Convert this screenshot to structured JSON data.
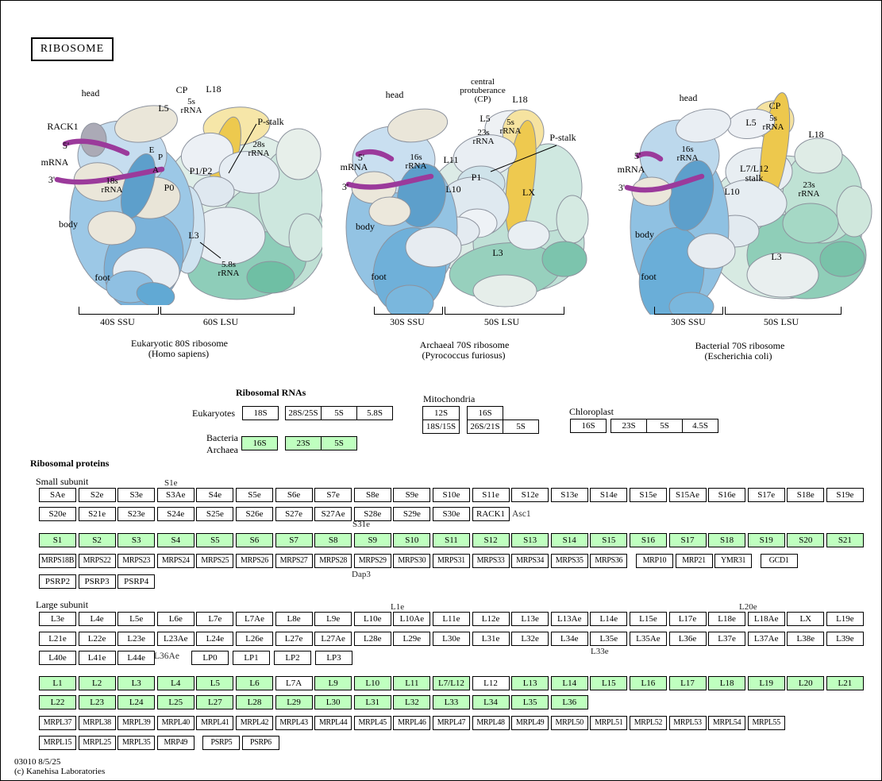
{
  "title": "RIBOSOME",
  "ribosomes": [
    {
      "labels": {
        "head": "head",
        "rack1": "RACK1",
        "five_prime": "5'",
        "mrna": "mRNA",
        "three_prime": "3'",
        "e": "E",
        "p": "P",
        "a": "A",
        "cp": "CP",
        "l5": "L5",
        "rrna5s": "5s\nrRNA",
        "l18": "L18",
        "pstalk": "P-stalk",
        "rrna28s": "28s\nrRNA",
        "p1p2": "P1/P2",
        "p0": "P0",
        "rrna18s": "18s\nrRNA",
        "body": "body",
        "l3": "L3",
        "rrna58s": "5.8s\nrRNA",
        "foot": "foot"
      },
      "ssu": "40S SSU",
      "lsu": "60S LSU",
      "caption1": "Eukaryotic 80S ribosome",
      "caption2": "(Homo sapiens)"
    },
    {
      "labels": {
        "head": "head",
        "cp": "central\nprotuberance\n(CP)",
        "l18": "L18",
        "l5": "L5",
        "rrna5s": "5s\nrRNA",
        "rrna23s": "23s\nrRNA",
        "pstalk": "P-stalk",
        "five_prime": "5'",
        "mrna": "mRNA",
        "three_prime": "3'",
        "rrna16s": "16s\nrRNA",
        "l11": "L11",
        "p1": "P1",
        "l10": "L10",
        "lx": "LX",
        "body": "body",
        "l3": "L3",
        "foot": "foot"
      },
      "ssu": "30S SSU",
      "lsu": "50S LSU",
      "caption1": "Archaeal 70S ribosome",
      "caption2": "(Pyrococcus furiosus)"
    },
    {
      "labels": {
        "head": "head",
        "cp": "CP",
        "l5": "L5",
        "rrna5s": "5s\nrRNA",
        "l18": "L18",
        "five_prime": "5'",
        "mrna": "mRNA",
        "three_prime": "3'",
        "rrna16s": "16s\nrRNA",
        "l7l12": "L7/L12\nstalk",
        "l10": "L10",
        "rrna23s": "23s\nrRNA",
        "body": "body",
        "l3": "L3",
        "foot": "foot"
      },
      "ssu": "30S SSU",
      "lsu": "50S LSU",
      "caption1": "Bacterial 70S ribosome",
      "caption2": "(Escherichia coli)"
    }
  ],
  "rna": {
    "title": "Ribosomal RNAs",
    "eukaryotes_label": "Eukaryotes",
    "euk_18s": "18S",
    "euk_group": [
      "28S/25S",
      "5S",
      "5.8S"
    ],
    "bacteria_label": "Bacteria\nArchaea",
    "bact_16s": "16S",
    "bact_group": [
      "23S",
      "5S"
    ],
    "mito_label": "Mitochondria",
    "mito_12s": "12S",
    "mito_16s": "16S",
    "mito_18s15s": "18S/15S",
    "mito_group": [
      "26S/21S",
      "5S"
    ],
    "chloro_label": "Chloroplast",
    "chloro_16s": "16S",
    "chloro_group": [
      "23S",
      "5S",
      "4.5S"
    ]
  },
  "proteins": {
    "title": "Ribosomal proteins",
    "small_label": "Small subunit",
    "large_label": "Large subunit",
    "notes": {
      "s1e": "S1e",
      "s31e": "S31e",
      "asc1": "Asc1",
      "dap3": "Dap3",
      "l1e": "L1e",
      "l20e": "L20e",
      "l33e": "L33e",
      "l36ae": "L36Ae"
    },
    "small_row1": [
      "SAe",
      "S2e",
      "S3e",
      "S3Ae",
      "S4e",
      "S5e",
      "S6e",
      "S7e",
      "S8e",
      "S9e",
      "S10e",
      "S11e",
      "S12e",
      "S13e",
      "S14e",
      "S15e",
      "S15Ae",
      "S16e",
      "S17e",
      "S18e",
      "S19e"
    ],
    "small_row2": [
      "S20e",
      "S21e",
      "S23e",
      "S24e",
      "S25e",
      "S26e",
      "S27e",
      "S27Ae",
      "S28e",
      "S29e",
      "S30e",
      "RACK1"
    ],
    "small_green": [
      "S1",
      "S2",
      "S3",
      "S4",
      "S5",
      "S6",
      "S7",
      "S8",
      "S9",
      "S10",
      "S11",
      "S12",
      "S13",
      "S14",
      "S15",
      "S16",
      "S17",
      "S18",
      "S19",
      "S20",
      "S21"
    ],
    "mrps_row": [
      "MRPS18B",
      "MRPS22",
      "MRPS23",
      "MRPS24",
      "MRPS25",
      "MRPS26",
      "MRPS27",
      "MRPS28",
      "MRPS29",
      "MRPS30",
      "MRPS31",
      "MRPS33",
      "MRPS34",
      "MRPS35",
      "MRPS36",
      {
        "label": "MRP10",
        "gap": 8
      },
      "MRP21",
      "YMR31",
      {
        "label": "GCD1",
        "gap": 8
      }
    ],
    "psrp_row": [
      "PSRP2",
      "PSRP3",
      "PSRP4"
    ],
    "large_row1": [
      "L3e",
      "L4e",
      "L5e",
      "L6e",
      "L7e",
      "L7Ae",
      "L8e",
      "L9e",
      "L10e",
      "L10Ae",
      "L11e",
      "L12e",
      "L13e",
      "L13Ae",
      "L14e",
      "L15e",
      "L17e",
      "L18e",
      "L18Ae",
      "LX",
      "L19e"
    ],
    "large_row2": [
      "L21e",
      "L22e",
      "L23e",
      "L23Ae",
      "L24e",
      "L26e",
      "L27e",
      "L27Ae",
      "L28e",
      "L29e",
      "L30e",
      "L31e",
      "L32e",
      "L34e",
      "L35e",
      "L35Ae",
      "L36e",
      "L37e",
      "L37Ae",
      "L38e",
      "L39e"
    ],
    "large_row3": [
      "L40e",
      "L41e",
      "L44e"
    ],
    "lp_row": [
      "LP0",
      "LP1",
      "LP2",
      "LP3"
    ],
    "large_green1": [
      "L1",
      "L2",
      "L3",
      "L4",
      "L5",
      "L6",
      {
        "label": "L7A",
        "cls": "white"
      },
      "L9",
      "L10",
      "L11",
      "L7/L12",
      {
        "label": "L12",
        "cls": "white"
      },
      "L13",
      "L14",
      "L15",
      "L16",
      "L17",
      "L18",
      "L19",
      "L20",
      "L21"
    ],
    "large_green2": [
      "L22",
      "L23",
      "L24",
      "L25",
      "L27",
      "L28",
      "L29",
      "L30",
      "L31",
      "L32",
      "L33",
      "L34",
      "L35",
      "L36"
    ],
    "mrpl_row1": [
      "MRPL37",
      "MRPL38",
      "MRPL39",
      "MRPL40",
      "MRPL41",
      "MRPL42",
      "MRPL43",
      "MRPL44",
      "MRPL45",
      "MRPL46",
      "MRPL47",
      "MRPL48",
      "MRPL49",
      "MRPL50",
      "MRPL51",
      "MRPL52",
      "MRPL53",
      "MRPL54",
      "MRPL55"
    ],
    "mrpl_row2": [
      "MRPL15",
      "MRPL25",
      "MRPL35",
      "MRP49",
      {
        "label": "PSRP5",
        "gap": 8
      },
      "PSRP6"
    ]
  },
  "footer": {
    "line1": "03010 8/5/25",
    "line2": "(c) Kanehisa Laboratories"
  },
  "colors": {
    "green": "#bfffbf",
    "mrna_purple": "#9b3a9b",
    "rrna_yellow": "#edc94e"
  }
}
